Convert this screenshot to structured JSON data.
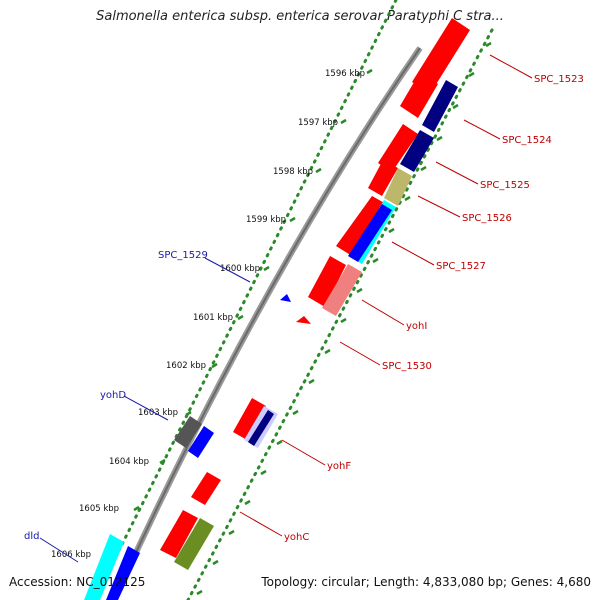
{
  "title": "Salmonella enterica subsp. enterica serovar Paratyphi C stra...",
  "footer": {
    "accession": "Accession: NC_012125",
    "topology": "Topology: circular; Length: 4,833,080 bp; Genes: 4,680"
  },
  "scale_labels": [
    "1596 kbp",
    "1597 kbp",
    "1598 kbp",
    "1599 kbp",
    "1600 kbp",
    "1601 kbp",
    "1602 kbp",
    "1603 kbp",
    "1604 kbp",
    "1605 kbp",
    "1606 kbp"
  ],
  "gene_labels": [
    {
      "text": "SPC_1523",
      "color": "#c00000"
    },
    {
      "text": "SPC_1524",
      "color": "#c00000"
    },
    {
      "text": "SPC_1525",
      "color": "#c00000"
    },
    {
      "text": "SPC_1526",
      "color": "#c00000"
    },
    {
      "text": "SPC_1527",
      "color": "#c00000"
    },
    {
      "text": "yohI",
      "color": "#c00000"
    },
    {
      "text": "SPC_1530",
      "color": "#c00000"
    },
    {
      "text": "yohF",
      "color": "#c00000"
    },
    {
      "text": "yohC",
      "color": "#c00000"
    },
    {
      "text": "SPC_1529",
      "color": "#1a1aa8"
    },
    {
      "text": "yohD",
      "color": "#1a1aa8"
    },
    {
      "text": "dld",
      "color": "#1a1aa8"
    }
  ],
  "colors": {
    "backbone": "#888888",
    "tick_dots": "#2a8a2a",
    "forward_cds": "#ff0000",
    "reverse_cds": "#0000ff",
    "navy": "#000080",
    "khaki": "#bdb76b",
    "cyan": "#00ffff",
    "pink": "#f08080",
    "olive": "#6b8e23",
    "gray": "#555555"
  }
}
